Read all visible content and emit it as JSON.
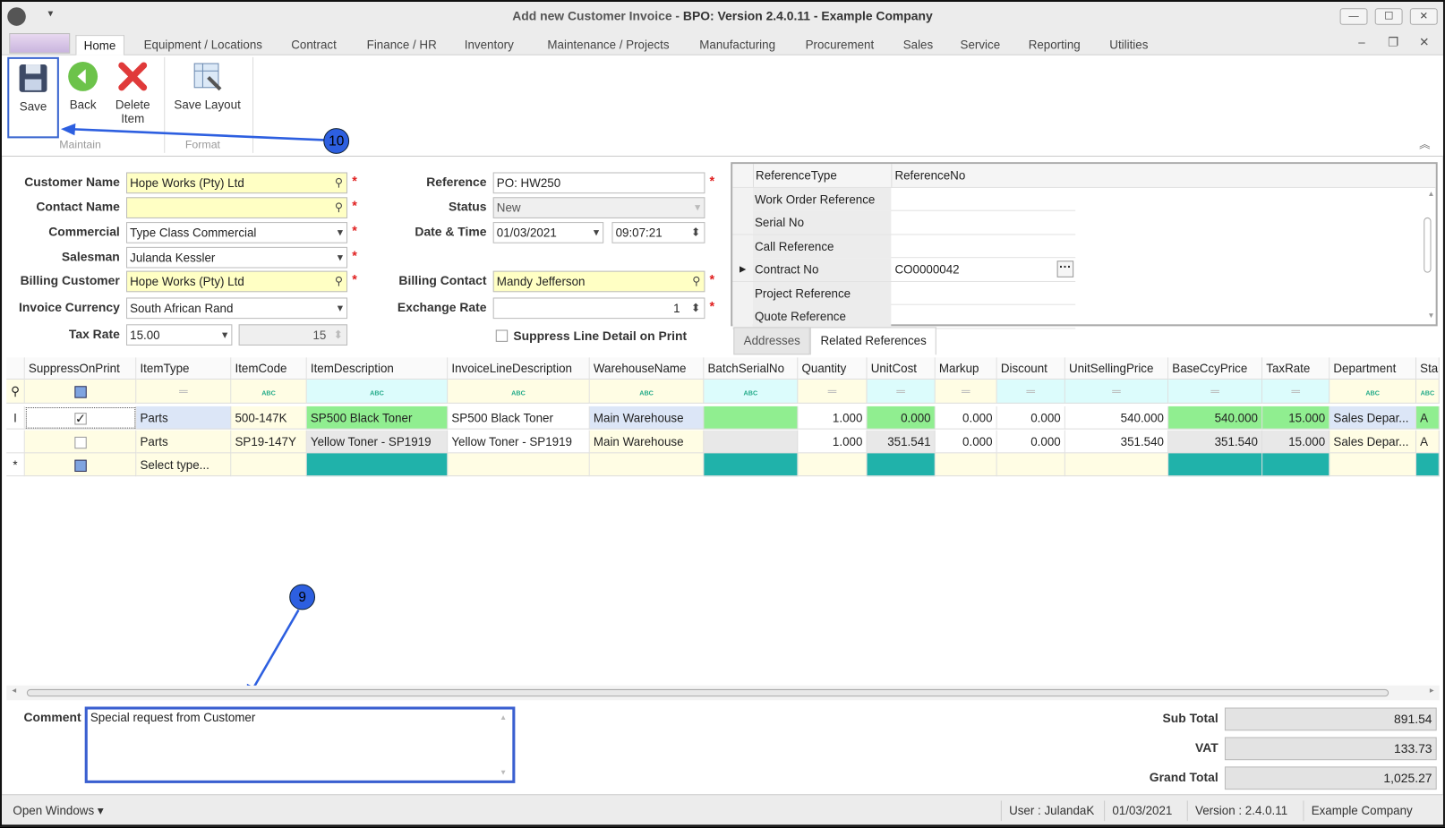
{
  "window": {
    "title_prefix": "Add new Customer Invoice - ",
    "title_main": "BPO: Version 2.4.0.11 - Example Company"
  },
  "menu": {
    "tabs": [
      "Home",
      "Equipment / Locations",
      "Contract",
      "Finance / HR",
      "Inventory",
      "Maintenance / Projects",
      "Manufacturing",
      "Procurement",
      "Sales",
      "Service",
      "Reporting",
      "Utilities"
    ],
    "active": "Home"
  },
  "ribbon": {
    "save": "Save",
    "back": "Back",
    "delete": "Delete Item",
    "save_layout": "Save Layout",
    "group_maintain": "Maintain",
    "group_format": "Format"
  },
  "callouts": {
    "save": "10",
    "comment": "9"
  },
  "form": {
    "customer_name": {
      "label": "Customer Name",
      "value": "Hope Works (Pty) Ltd"
    },
    "contact_name": {
      "label": "Contact Name",
      "value": ""
    },
    "commercial": {
      "label": "Commercial",
      "value": "Type Class Commercial"
    },
    "salesman": {
      "label": "Salesman",
      "value": "Julanda Kessler"
    },
    "billing_customer": {
      "label": "Billing Customer",
      "value": "Hope Works (Pty) Ltd"
    },
    "invoice_currency": {
      "label": "Invoice Currency",
      "value": "South African Rand"
    },
    "tax_rate": {
      "label": "Tax Rate",
      "value": "15.00",
      "spin": "15"
    },
    "reference": {
      "label": "Reference",
      "value": "PO: HW250"
    },
    "status": {
      "label": "Status",
      "value": "New"
    },
    "date_time": {
      "label": "Date & Time",
      "date": "01/03/2021",
      "time": "09:07:21"
    },
    "billing_contact": {
      "label": "Billing Contact",
      "value": "Mandy Jefferson"
    },
    "exchange_rate": {
      "label": "Exchange Rate",
      "value": "1"
    },
    "suppress": {
      "label": "Suppress Line Detail on Print",
      "checked": false
    }
  },
  "references": {
    "headers": [
      "ReferenceType",
      "ReferenceNo"
    ],
    "rows": [
      [
        "Work Order Reference",
        ""
      ],
      [
        "Serial No",
        ""
      ],
      [
        "Call Reference",
        ""
      ],
      [
        "Contract No",
        "CO0000042"
      ],
      [
        "Project Reference",
        ""
      ],
      [
        "Quote Reference",
        ""
      ]
    ],
    "tabs": [
      "Addresses",
      "Related References"
    ],
    "active_tab": "Related References"
  },
  "grid": {
    "columns": [
      "SuppressOnPrint",
      "ItemType",
      "ItemCode",
      "ItemDescription",
      "InvoiceLineDescription",
      "WarehouseName",
      "BatchSerialNo",
      "Quantity",
      "UnitCost",
      "Markup",
      "Discount",
      "UnitSellingPrice",
      "BaseCcyPrice",
      "TaxRate",
      "Department",
      "Sta"
    ],
    "rows": [
      [
        "checked",
        "Parts",
        "500-147K",
        "SP500 Black Toner",
        "SP500 Black Toner",
        "Main Warehouse",
        "",
        "1.000",
        "0.000",
        "0.000",
        "0.000",
        "540.000",
        "540.000",
        "15.000",
        "Sales Depar...",
        "A"
      ],
      [
        "unchecked",
        "Parts",
        "SP19-147Y",
        "Yellow Toner - SP1919",
        "Yellow Toner - SP1919",
        "Main Warehouse",
        "",
        "1.000",
        "351.541",
        "0.000",
        "0.000",
        "351.540",
        "351.540",
        "15.000",
        "Sales Depar...",
        "A"
      ]
    ],
    "new_row": {
      "item_type": "Select type..."
    }
  },
  "comment": {
    "label": "Comment",
    "value": "Special request from Customer"
  },
  "totals": {
    "sub_total_label": "Sub Total",
    "sub_total": "891.54",
    "vat_label": "VAT",
    "vat": "133.73",
    "grand_total_label": "Grand Total",
    "grand_total": "1,025.27"
  },
  "status_bar": {
    "open_windows": "Open Windows",
    "user": "User : JulandaK",
    "date": "01/03/2021",
    "version": "Version : 2.4.0.11",
    "company": "Example Company"
  },
  "colors": {
    "required": "#e02020",
    "lookup_field": "#ffffc4",
    "green_cell": "#90ee90",
    "teal_cell": "#20b2aa",
    "callout": "#2d5fe0"
  }
}
